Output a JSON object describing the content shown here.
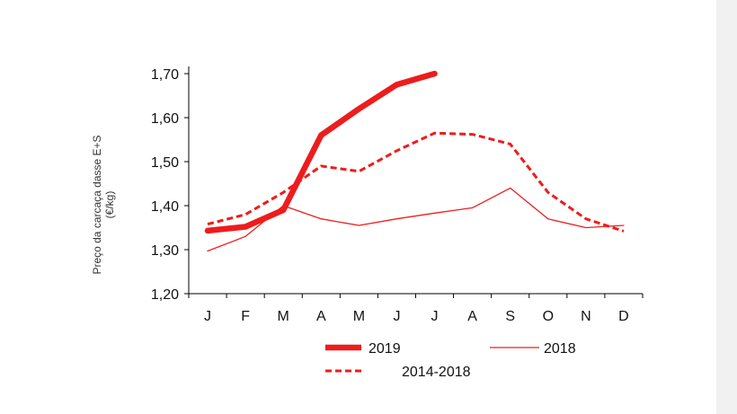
{
  "chart_data": {
    "type": "line",
    "categories": [
      "J",
      "F",
      "M",
      "A",
      "M",
      "J",
      "J",
      "A",
      "S",
      "O",
      "N",
      "D"
    ],
    "ylabel": [
      "Preço da carcaça dasse E+S",
      "(€/kg)"
    ],
    "ylim": [
      1.2,
      1.7
    ],
    "yticks": [
      1.2,
      1.3,
      1.4,
      1.5,
      1.6,
      1.7
    ],
    "ytick_labels": [
      "1,20",
      "1,30",
      "1,40",
      "1,50",
      "1,60",
      "1,70"
    ],
    "grid": false,
    "legend_position": "bottom",
    "series": [
      {
        "name": "2019",
        "style": "thick-solid",
        "color": "#ee1c1c",
        "values": [
          1.343,
          1.352,
          1.39,
          1.56,
          1.62,
          1.675,
          1.7,
          null,
          null,
          null,
          null,
          null
        ]
      },
      {
        "name": "2018",
        "style": "thin-solid",
        "color": "#ee1c1c",
        "values": [
          1.297,
          1.33,
          1.4,
          1.37,
          1.355,
          1.37,
          1.383,
          1.395,
          1.44,
          1.37,
          1.35,
          1.355
        ]
      },
      {
        "name": "2014-2018",
        "style": "dashed",
        "color": "#ee1c1c",
        "values": [
          1.358,
          1.38,
          1.43,
          1.49,
          1.478,
          1.525,
          1.565,
          1.562,
          1.54,
          1.43,
          1.37,
          1.342
        ]
      }
    ]
  }
}
